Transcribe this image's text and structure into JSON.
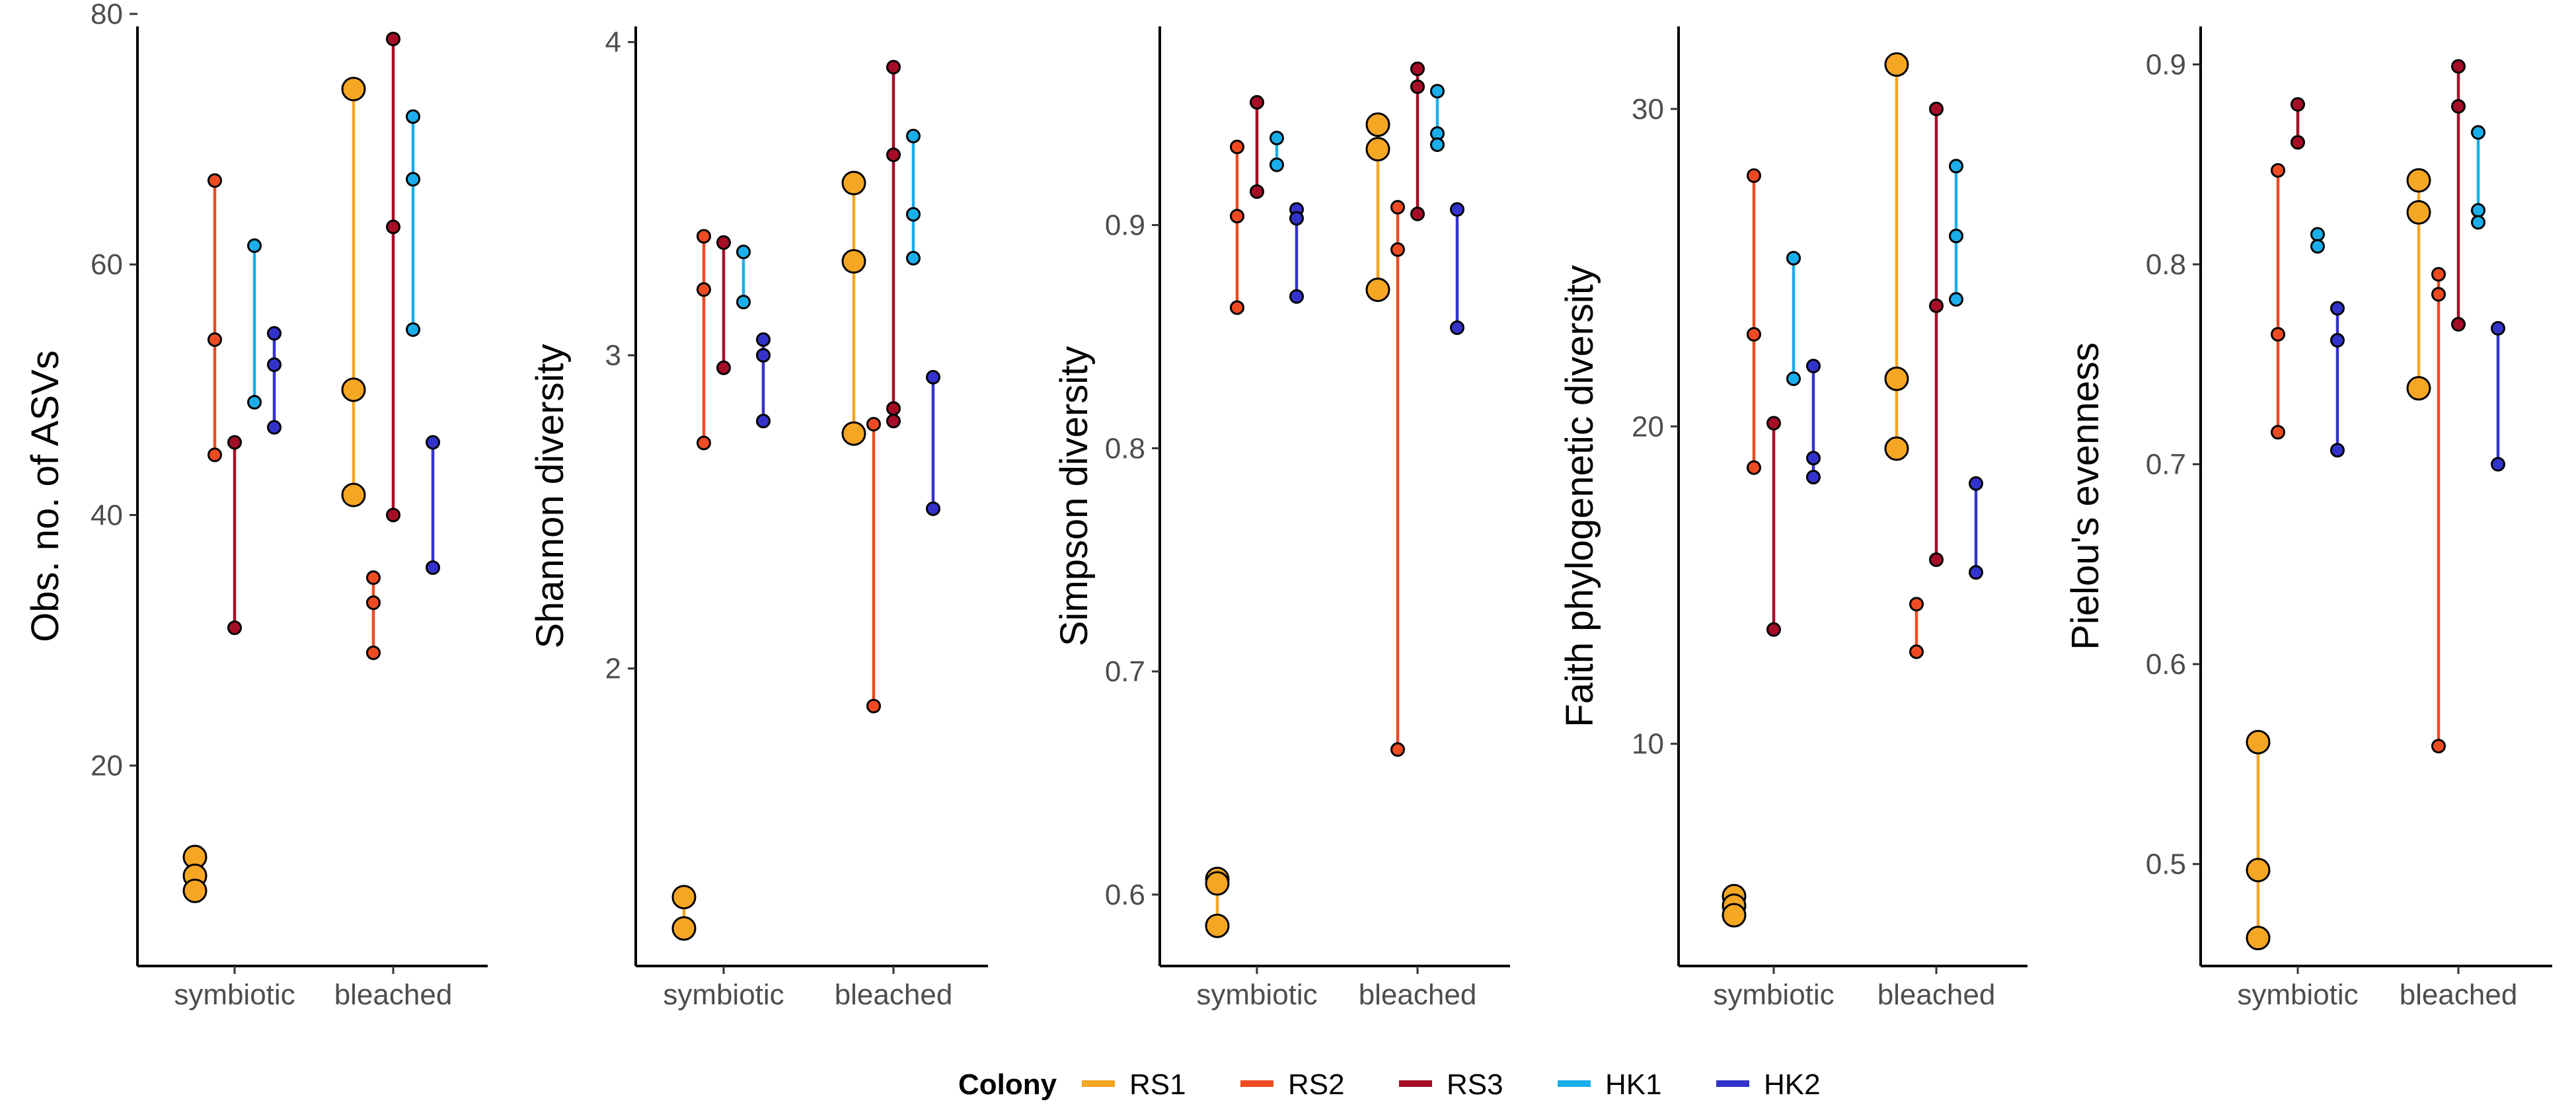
{
  "legend": {
    "title": "Colony",
    "entries": [
      {
        "name": "RS1",
        "color": "#F5A623"
      },
      {
        "name": "RS2",
        "color": "#EE4B22"
      },
      {
        "name": "RS3",
        "color": "#A50E26"
      },
      {
        "name": "HK1",
        "color": "#1AAEEA"
      },
      {
        "name": "HK2",
        "color": "#3333CC"
      }
    ]
  },
  "chart_data": [
    {
      "type": "scatter",
      "ylabel": "Obs. no. of ASVs",
      "categories": [
        "symbiotic",
        "bleached"
      ],
      "ylim": [
        4,
        79
      ],
      "yticks": [
        20,
        40,
        60,
        80
      ],
      "series": [
        {
          "name": "RS1",
          "symbiotic": [
            12.7,
            11.2,
            10.0
          ],
          "bleached": [
            74.0,
            50.0,
            41.6
          ]
        },
        {
          "name": "RS2",
          "symbiotic": [
            66.7,
            54.0,
            44.8
          ],
          "bleached": [
            35.0,
            33.0,
            29.0
          ]
        },
        {
          "name": "RS3",
          "symbiotic": [
            45.8,
            31.0
          ],
          "bleached": [
            78.0,
            63.0,
            40.0
          ]
        },
        {
          "name": "HK1",
          "symbiotic": [
            61.5,
            49.0
          ],
          "bleached": [
            71.8,
            66.8,
            54.8
          ]
        },
        {
          "name": "HK2",
          "symbiotic": [
            54.5,
            52.0,
            47.0
          ],
          "bleached": [
            45.8,
            35.8
          ]
        }
      ]
    },
    {
      "type": "scatter",
      "ylabel": "Shannon diversity",
      "categories": [
        "symbiotic",
        "bleached"
      ],
      "ylim": [
        1.05,
        4.05
      ],
      "yticks": [
        2,
        3,
        4
      ],
      "series": [
        {
          "name": "RS1",
          "symbiotic": [
            1.27,
            1.17
          ],
          "bleached": [
            3.55,
            3.3,
            2.75
          ]
        },
        {
          "name": "RS2",
          "symbiotic": [
            3.38,
            3.21,
            2.72
          ],
          "bleached": [
            2.78,
            1.88
          ]
        },
        {
          "name": "RS3",
          "symbiotic": [
            3.36,
            2.96
          ],
          "bleached": [
            3.92,
            3.64,
            2.83,
            2.79
          ]
        },
        {
          "name": "HK1",
          "symbiotic": [
            3.33,
            3.17
          ],
          "bleached": [
            3.7,
            3.45,
            3.31
          ]
        },
        {
          "name": "HK2",
          "symbiotic": [
            3.05,
            3.0,
            2.79
          ],
          "bleached": [
            2.93,
            2.51
          ]
        }
      ]
    },
    {
      "type": "scatter",
      "ylabel": "Simpson diversity",
      "categories": [
        "symbiotic",
        "bleached"
      ],
      "ylim": [
        0.568,
        0.989
      ],
      "yticks": [
        0.6,
        0.7,
        0.8,
        0.9
      ],
      "series": [
        {
          "name": "RS1",
          "symbiotic": [
            0.607,
            0.605,
            0.586
          ],
          "bleached": [
            0.945,
            0.934,
            0.871
          ]
        },
        {
          "name": "RS2",
          "symbiotic": [
            0.935,
            0.904,
            0.863
          ],
          "bleached": [
            0.908,
            0.889,
            0.665
          ]
        },
        {
          "name": "RS3",
          "symbiotic": [
            0.955,
            0.915
          ],
          "bleached": [
            0.97,
            0.962,
            0.905
          ]
        },
        {
          "name": "HK1",
          "symbiotic": [
            0.939,
            0.927
          ],
          "bleached": [
            0.96,
            0.941,
            0.936
          ]
        },
        {
          "name": "HK2",
          "symbiotic": [
            0.907,
            0.903,
            0.868
          ],
          "bleached": [
            0.907,
            0.854
          ]
        }
      ]
    },
    {
      "type": "scatter",
      "ylabel": "Faith phylogenetic diversity",
      "categories": [
        "symbiotic",
        "bleached"
      ],
      "ylim": [
        3.0,
        32.6
      ],
      "yticks": [
        10,
        20,
        30
      ],
      "series": [
        {
          "name": "RS1",
          "symbiotic": [
            5.2,
            4.9,
            4.6
          ],
          "bleached": [
            31.4,
            21.5,
            19.3
          ]
        },
        {
          "name": "RS2",
          "symbiotic": [
            27.9,
            22.9,
            18.7
          ],
          "bleached": [
            14.4,
            12.9
          ]
        },
        {
          "name": "RS3",
          "symbiotic": [
            20.1,
            13.6
          ],
          "bleached": [
            30.0,
            23.8,
            15.8
          ]
        },
        {
          "name": "HK1",
          "symbiotic": [
            25.3,
            21.5
          ],
          "bleached": [
            28.2,
            26.0,
            24.0
          ]
        },
        {
          "name": "HK2",
          "symbiotic": [
            21.9,
            19.0,
            18.4
          ],
          "bleached": [
            18.2,
            15.4
          ]
        }
      ]
    },
    {
      "type": "scatter",
      "ylabel": "Pielou's evenness",
      "categories": [
        "symbiotic",
        "bleached"
      ],
      "ylim": [
        0.449,
        0.919
      ],
      "yticks": [
        0.5,
        0.6,
        0.7,
        0.8,
        0.9
      ],
      "series": [
        {
          "name": "RS1",
          "symbiotic": [
            0.561,
            0.497,
            0.463
          ],
          "bleached": [
            0.842,
            0.826,
            0.738
          ]
        },
        {
          "name": "RS2",
          "symbiotic": [
            0.847,
            0.765,
            0.716
          ],
          "bleached": [
            0.795,
            0.785,
            0.559
          ]
        },
        {
          "name": "RS3",
          "symbiotic": [
            0.88,
            0.861
          ],
          "bleached": [
            0.899,
            0.879,
            0.77
          ]
        },
        {
          "name": "HK1",
          "symbiotic": [
            0.815,
            0.809
          ],
          "bleached": [
            0.866,
            0.827,
            0.821
          ]
        },
        {
          "name": "HK2",
          "symbiotic": [
            0.778,
            0.762,
            0.707
          ],
          "bleached": [
            0.768,
            0.7
          ]
        }
      ]
    }
  ]
}
